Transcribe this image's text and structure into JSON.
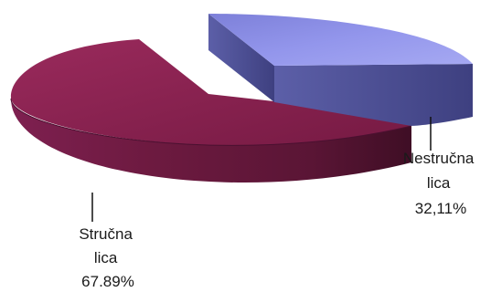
{
  "chart_data": {
    "type": "pie",
    "style": "3d-exploded",
    "slices": [
      {
        "label_lines": [
          "Nestručna",
          "lica"
        ],
        "value_label": "32,11%",
        "value": 32.11,
        "color_top": "#8f92e6",
        "color_side": "#4f5296"
      },
      {
        "label_lines": [
          "Stručna",
          "lica"
        ],
        "value_label": "67.89%",
        "value": 67.89,
        "color_top": "#851d4b",
        "color_side": "#6b1a3d"
      }
    ]
  }
}
